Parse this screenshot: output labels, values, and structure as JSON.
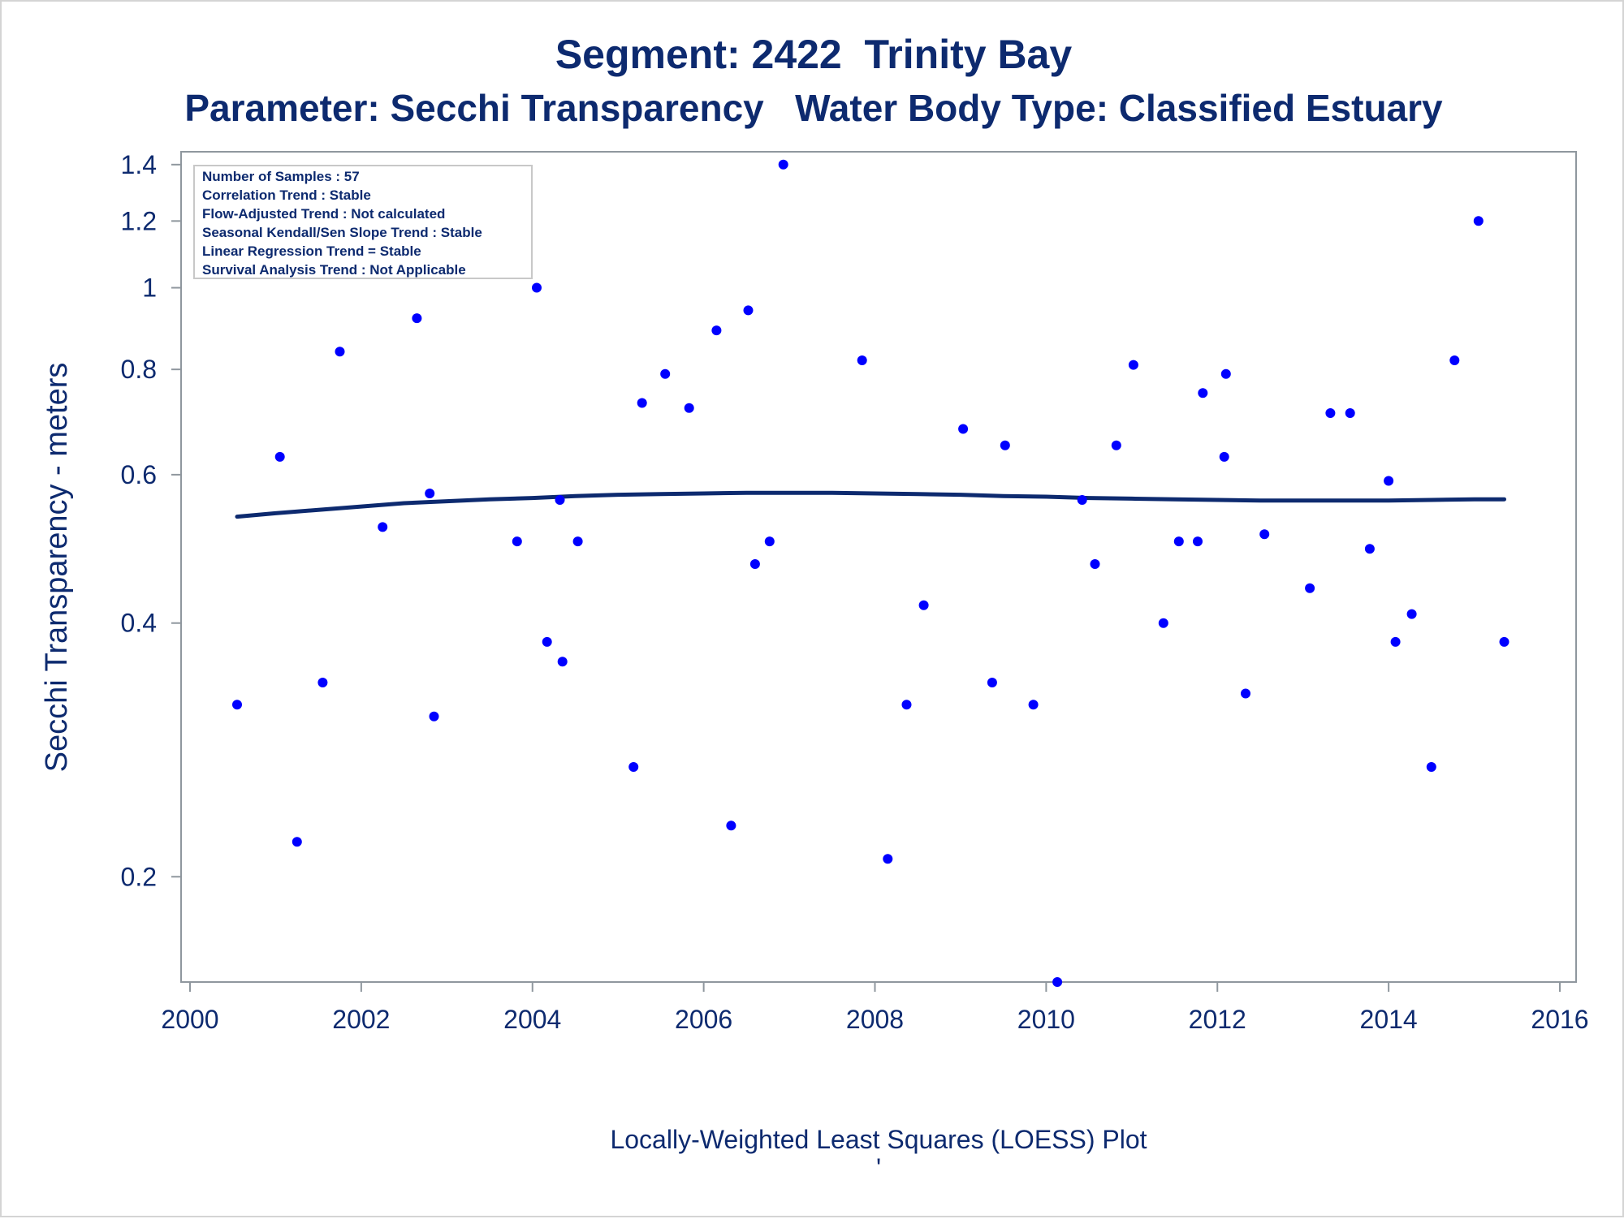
{
  "chart_data": {
    "type": "scatter",
    "title": "Segment: 2422  Trinity Bay",
    "subtitle": "Parameter: Secchi Transparency   Water Body Type: Classified Estuary",
    "ylabel": "Secchi Transparency - meters",
    "xlabel": "",
    "footnote": "Locally-Weighted Least Squares (LOESS) Plot",
    "footnote_mark": "'",
    "y_scale": "log",
    "xlim": [
      2000,
      2016
    ],
    "ylim": [
      0.15,
      1.45
    ],
    "x_ticks": [
      2000,
      2002,
      2004,
      2006,
      2008,
      2010,
      2012,
      2014,
      2016
    ],
    "x_tick_labels": [
      "2000",
      "2002",
      "2004",
      "2006",
      "2008",
      "2010",
      "2012",
      "2014",
      "2016"
    ],
    "y_ticks": [
      0.2,
      0.4,
      0.6,
      0.8,
      1,
      1.2,
      1.4
    ],
    "y_tick_labels": [
      "0.2",
      "0.4",
      "0.6",
      "0.8",
      "1",
      "1.2",
      "1.4"
    ],
    "grid": false,
    "legend_placement": "top-left",
    "info_box": [
      "Number of Samples : 57",
      "Correlation Trend : Stable",
      "Flow-Adjusted Trend : Not calculated",
      "Seasonal Kendall/Sen Slope Trend : Stable",
      "Linear Regression Trend = Stable",
      "Survival Analysis Trend : Not Applicable"
    ],
    "series": [
      {
        "type": "scatter",
        "color": "#0000ff",
        "x": [
          2000.55,
          2001.05,
          2001.25,
          2001.55,
          2001.75,
          2002.25,
          2002.65,
          2002.8,
          2002.85,
          2003.82,
          2004.05,
          2004.17,
          2004.32,
          2004.35,
          2004.53,
          2005.18,
          2005.28,
          2005.55,
          2005.83,
          2006.15,
          2006.32,
          2006.52,
          2006.6,
          2006.77,
          2006.93,
          2007.85,
          2008.15,
          2008.37,
          2008.57,
          2009.03,
          2009.37,
          2009.52,
          2009.85,
          2010.13,
          2010.42,
          2010.57,
          2010.82,
          2011.02,
          2011.37,
          2011.55,
          2011.77,
          2011.83,
          2012.08,
          2012.1,
          2012.33,
          2012.55,
          2013.08,
          2013.32,
          2013.55,
          2013.78,
          2014.0,
          2014.08,
          2014.27,
          2014.5,
          2014.77,
          2015.05,
          2015.35
        ],
        "y": [
          0.32,
          0.63,
          0.22,
          0.34,
          0.84,
          0.52,
          0.92,
          0.57,
          0.31,
          0.5,
          1.0,
          0.38,
          0.56,
          0.36,
          0.5,
          0.27,
          0.73,
          0.79,
          0.72,
          0.89,
          0.23,
          0.94,
          0.47,
          0.5,
          1.4,
          0.82,
          0.21,
          0.32,
          0.42,
          0.68,
          0.34,
          0.65,
          0.32,
          0.15,
          0.56,
          0.47,
          0.65,
          0.81,
          0.4,
          0.5,
          0.5,
          0.75,
          0.63,
          0.79,
          0.33,
          0.51,
          0.44,
          0.71,
          0.71,
          0.49,
          0.59,
          0.38,
          0.41,
          0.27,
          0.82,
          1.2,
          0.38
        ]
      },
      {
        "type": "line",
        "color": "#0d2a6f",
        "x": [
          2000.55,
          2001.0,
          2001.5,
          2002.0,
          2002.5,
          2003.0,
          2003.5,
          2004.0,
          2004.5,
          2005.0,
          2005.5,
          2006.0,
          2006.5,
          2007.0,
          2007.5,
          2008.0,
          2008.5,
          2009.0,
          2009.5,
          2010.0,
          2010.5,
          2011.0,
          2011.5,
          2012.0,
          2012.5,
          2013.0,
          2013.5,
          2014.0,
          2014.5,
          2015.0,
          2015.35
        ],
        "y": [
          0.535,
          0.54,
          0.545,
          0.55,
          0.555,
          0.558,
          0.561,
          0.563,
          0.566,
          0.568,
          0.569,
          0.57,
          0.571,
          0.571,
          0.571,
          0.57,
          0.569,
          0.568,
          0.566,
          0.565,
          0.563,
          0.562,
          0.561,
          0.56,
          0.559,
          0.559,
          0.559,
          0.559,
          0.56,
          0.561,
          0.561
        ]
      }
    ]
  }
}
